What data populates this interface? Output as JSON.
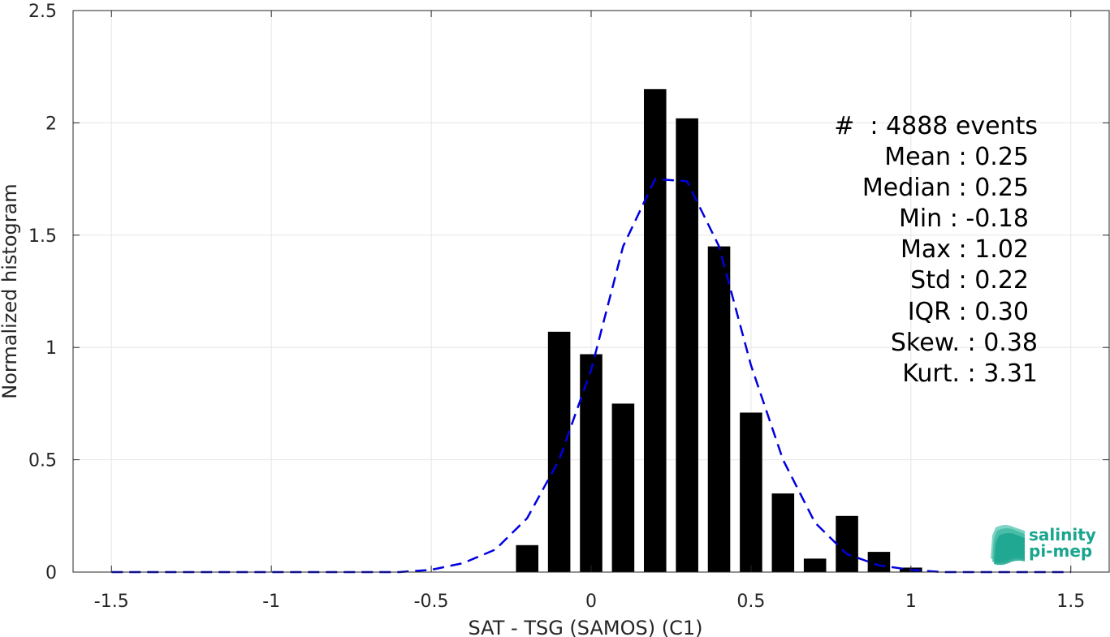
{
  "chart_data": {
    "type": "bar",
    "xlabel": "SAT - TSG (SAMOS) (C1)",
    "ylabel": "Normalized histogram",
    "xlim": [
      -1.62,
      1.62
    ],
    "ylim": [
      0,
      2.5
    ],
    "grid": true,
    "x_ticks": [
      {
        "value": -1.5,
        "label": "-1.5"
      },
      {
        "value": -1,
        "label": "-1"
      },
      {
        "value": -0.5,
        "label": "-0.5"
      },
      {
        "value": 0,
        "label": "0"
      },
      {
        "value": 0.5,
        "label": "0.5"
      },
      {
        "value": 1,
        "label": "1"
      },
      {
        "value": 1.5,
        "label": "1.5"
      }
    ],
    "y_ticks": [
      {
        "value": 0,
        "label": "0"
      },
      {
        "value": 0.5,
        "label": "0.5"
      },
      {
        "value": 1,
        "label": "1"
      },
      {
        "value": 1.5,
        "label": "1.5"
      },
      {
        "value": 2,
        "label": "2"
      },
      {
        "value": 2.5,
        "label": "2.5"
      }
    ],
    "bar_width": 0.07,
    "bars": [
      {
        "x": -0.2,
        "y": 0.12
      },
      {
        "x": -0.1,
        "y": 1.07
      },
      {
        "x": 0.0,
        "y": 0.97
      },
      {
        "x": 0.1,
        "y": 0.75
      },
      {
        "x": 0.2,
        "y": 2.15
      },
      {
        "x": 0.3,
        "y": 2.02
      },
      {
        "x": 0.4,
        "y": 1.45
      },
      {
        "x": 0.5,
        "y": 0.71
      },
      {
        "x": 0.6,
        "y": 0.35
      },
      {
        "x": 0.7,
        "y": 0.06
      },
      {
        "x": 0.8,
        "y": 0.25
      },
      {
        "x": 0.9,
        "y": 0.09
      },
      {
        "x": 1.0,
        "y": 0.02
      }
    ],
    "bar_color": "#000000",
    "fit_curve": {
      "style": "dashed",
      "color": "#0000e0",
      "points": [
        [
          -1.5,
          0.0
        ],
        [
          -1.0,
          0.0
        ],
        [
          -0.6,
          0.0
        ],
        [
          -0.5,
          0.01
        ],
        [
          -0.4,
          0.04
        ],
        [
          -0.3,
          0.1
        ],
        [
          -0.2,
          0.24
        ],
        [
          -0.1,
          0.5
        ],
        [
          0.0,
          0.9
        ],
        [
          0.1,
          1.45
        ],
        [
          0.2,
          1.75
        ],
        [
          0.3,
          1.74
        ],
        [
          0.4,
          1.45
        ],
        [
          0.5,
          0.92
        ],
        [
          0.6,
          0.5
        ],
        [
          0.7,
          0.22
        ],
        [
          0.8,
          0.08
        ],
        [
          0.9,
          0.03
        ],
        [
          1.0,
          0.01
        ],
        [
          1.1,
          0.0
        ],
        [
          1.5,
          0.0
        ]
      ]
    },
    "stats": {
      "count": "#  : 4888 events",
      "mean": "Mean : 0.25",
      "median": "Median : 0.25",
      "min": "Min : -0.18",
      "max": "Max : 1.02",
      "std": "Std : 0.22",
      "iqr": "IQR : 0.30",
      "skew": "Skew. : 0.38",
      "kurt": "Kurt. : 3.31"
    }
  },
  "logo": {
    "line1": "salinity",
    "line2": "pi-mep",
    "color": "#1aa58e"
  }
}
